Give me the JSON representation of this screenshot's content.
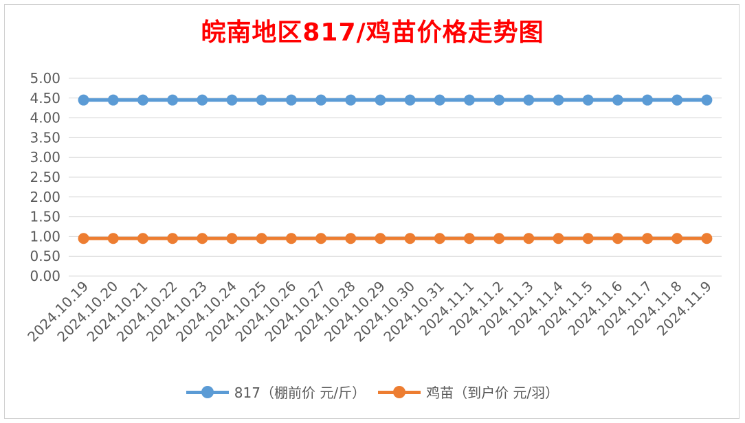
{
  "chart_data": {
    "type": "line",
    "title": "皖南地区817/鸡苗价格走势图",
    "xlabel": "",
    "ylabel": "",
    "ylim": [
      0,
      5
    ],
    "yticks": [
      "0.00",
      "0.50",
      "1.00",
      "1.50",
      "2.00",
      "2.50",
      "3.00",
      "3.50",
      "4.00",
      "4.50",
      "5.00"
    ],
    "grid": true,
    "legend_position": "bottom",
    "categories": [
      "2024.10.19",
      "2024.10.20",
      "2024.10.21",
      "2024.10.22",
      "2024.10.23",
      "2024.10.24",
      "2024.10.25",
      "2024.10.26",
      "2024.10.27",
      "2024.10.28",
      "2024.10.29",
      "2024.10.30",
      "2024.10.31",
      "2024.11.1",
      "2024.11.2",
      "2024.11.3",
      "2024.11.4",
      "2024.11.5",
      "2024.11.6",
      "2024.11.7",
      "2024.11.8",
      "2024.11.9"
    ],
    "series": [
      {
        "name": "817（棚前价 元/斤）",
        "color": "#5b9bd5",
        "values": [
          4.45,
          4.45,
          4.45,
          4.45,
          4.45,
          4.45,
          4.45,
          4.45,
          4.45,
          4.45,
          4.45,
          4.45,
          4.45,
          4.45,
          4.45,
          4.45,
          4.45,
          4.45,
          4.45,
          4.45,
          4.45,
          4.45
        ]
      },
      {
        "name": "鸡苗（到户价 元/羽）",
        "color": "#ed7d31",
        "values": [
          0.95,
          0.95,
          0.95,
          0.95,
          0.95,
          0.95,
          0.95,
          0.95,
          0.95,
          0.95,
          0.95,
          0.95,
          0.95,
          0.95,
          0.95,
          0.95,
          0.95,
          0.95,
          0.95,
          0.95,
          0.95,
          0.95
        ]
      }
    ]
  }
}
